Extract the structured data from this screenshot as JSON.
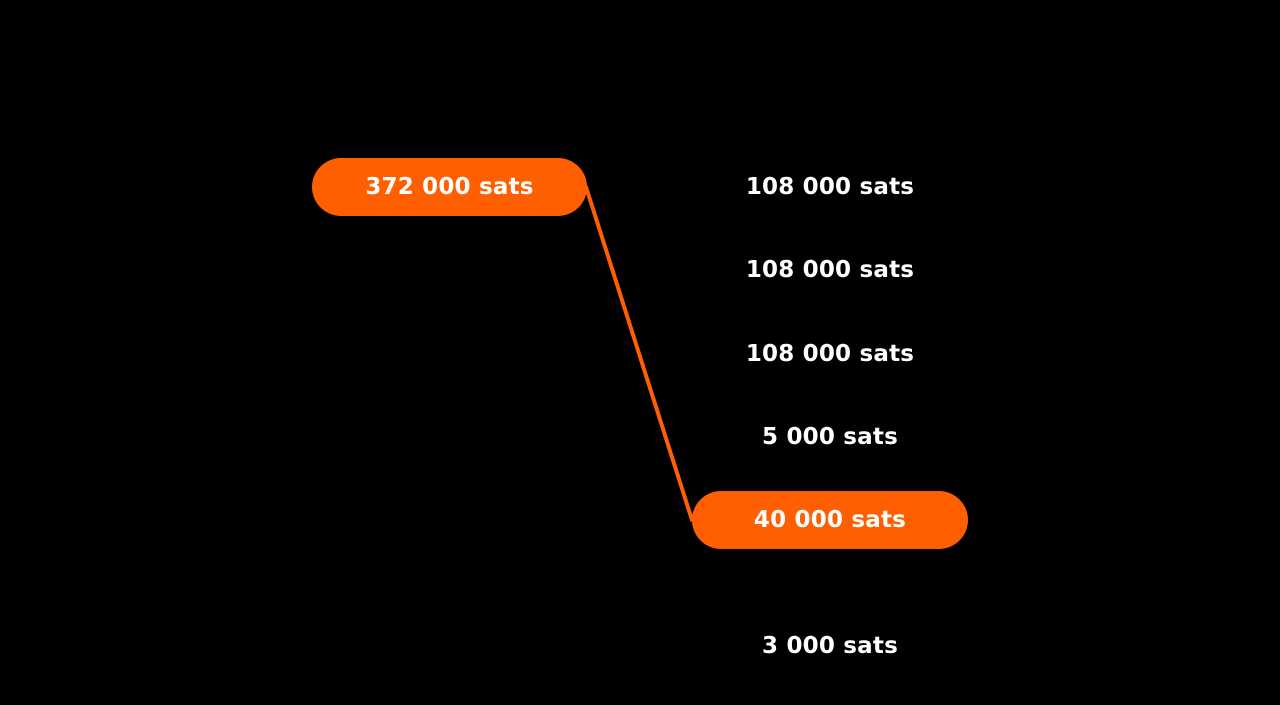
{
  "colors": {
    "background": "#000000",
    "accent": "#FF5F00",
    "text": "#FFFFFF"
  },
  "input": {
    "label": "372 000 sats"
  },
  "outputs": [
    {
      "label": "108 000 sats",
      "highlighted": false
    },
    {
      "label": "108 000 sats",
      "highlighted": false
    },
    {
      "label": "108 000 sats",
      "highlighted": false
    },
    {
      "label": "5 000 sats",
      "highlighted": false
    },
    {
      "label": "40 000 sats",
      "highlighted": true
    },
    {
      "label": "3 000 sats",
      "highlighted": false
    }
  ]
}
